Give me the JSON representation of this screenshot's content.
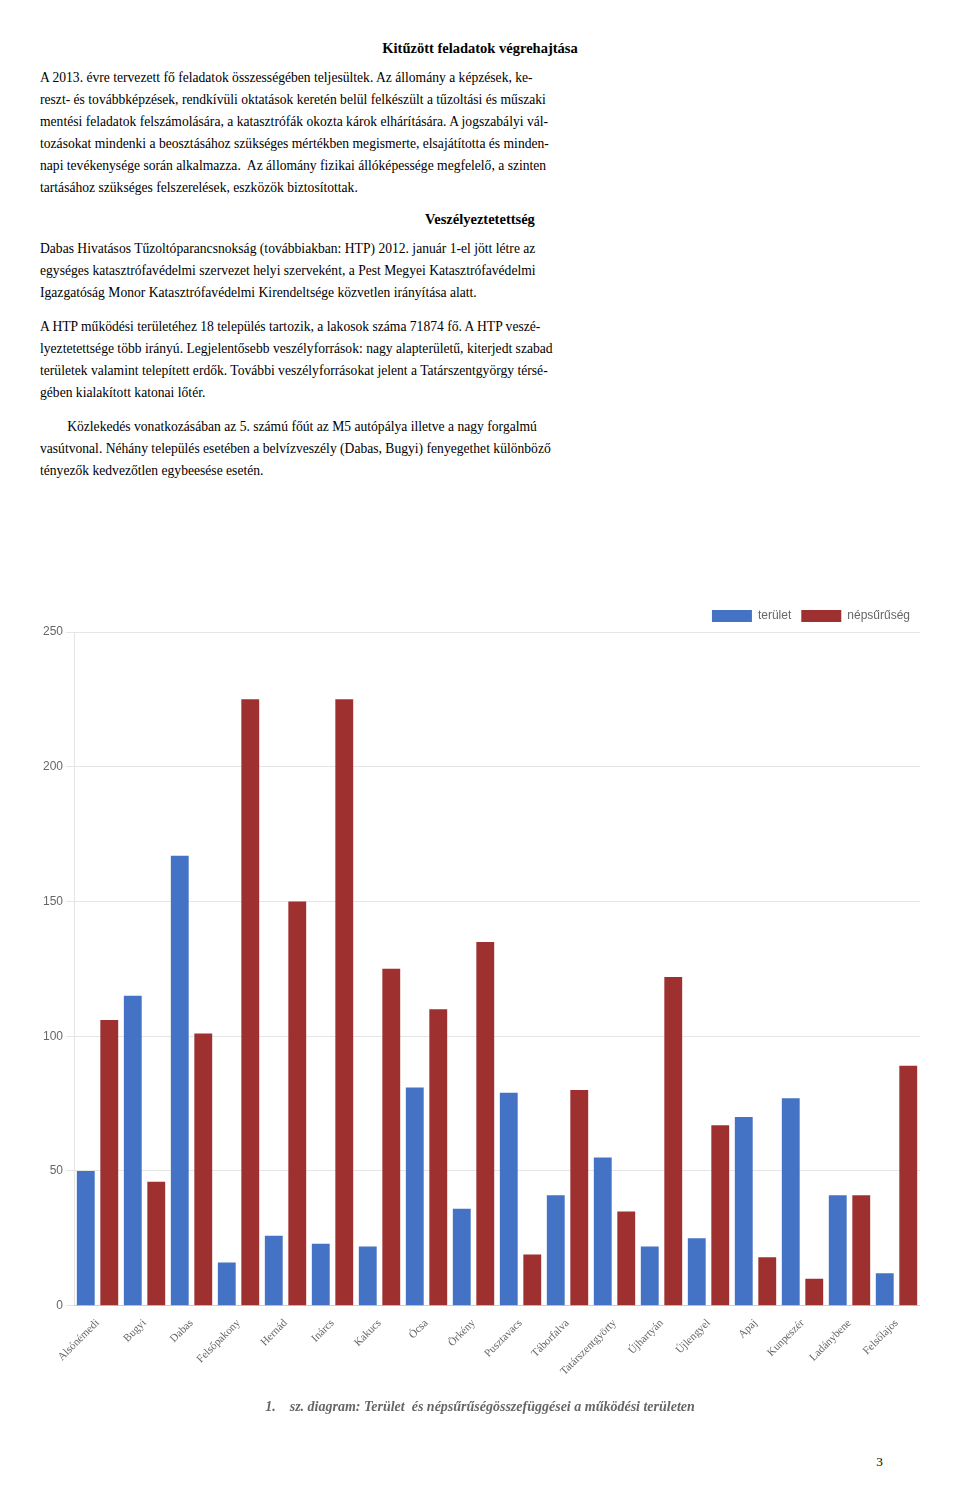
{
  "blocks": [
    {
      "heading": "Kitűzött feladatok végrehajtása"
    },
    {
      "lines": [
        "A 2013. évre tervezett fő feladatok összességében teljesültek. Az állomány a képzések, ke-",
        "reszt- és továbbképzések, rendkívüli oktatások keretén belül felkészült a tűzoltási és műszaki",
        "mentési feladatok felszámolására, a katasztrófák okozta károk elhárítására. A jogszabályi vál-",
        "tozásokat mindenki a beosztásához szükséges mértékben megismerte, elsajátította és minden-",
        "napi tevékenysége során alkalmazza.  Az állomány fizikai állóképessége megfelelő, a szinten",
        "tartásához szükséges felszerelések, eszközök biztosítottak."
      ]
    },
    {
      "heading": "Veszélyeztetettség"
    },
    {
      "lines": [
        "Dabas Hivatásos Tűzoltóparancsnokság (továbbiakban: HTP) 2012. január 1-el jött létre az",
        "egységes katasztrófavédelmi szervezet helyi szerveként, a Pest Megyei Katasztrófavédelmi",
        "Igazgatóság Monor Katasztrófavédelmi Kirendeltsége közvetlen irányítása alatt."
      ]
    },
    {
      "lines": [
        "A HTP működési területéhez 18 település tartozik, a lakosok száma 71874 fő. A HTP veszé-",
        "lyeztetettsége több irányú. Legjelentősebb veszélyforrások: nagy alapterületű, kiterjedt szabad",
        "területek valamint telepített erdők. További veszélyforrásokat jelent a Tatárszentgyörgy térsé-",
        "gében kialakított katonai lőtér."
      ]
    },
    {
      "lines": [
        "        Közlekedés vonatkozásában az 5. számú főút az M5 autópálya illetve a nagy forgalmú",
        "vasútvonal. Néhány település esetében a belvízveszély (Dabas, Bugyi) fenyegethet különböző",
        "tényezők kedvezőtlen egybeesése esetén."
      ]
    }
  ],
  "page_number": "3",
  "chart_data": {
    "type": "bar",
    "title": "1.    sz. diagram: Terület  és népsűrűségösszefüggései a működési területen",
    "categories": [
      "Alsónémedi",
      "Bugyi",
      "Dabas",
      "Felsőpakony",
      "Hernád",
      "Inárcs",
      "Kakucs",
      "Ócsa",
      "Örkény",
      "Pusztavacs",
      "Táborfalva",
      "Tatárszentgyörty",
      "Újhartyán",
      "Újlengyel",
      "Apaj",
      "Kunpeszér",
      "Ladánybene",
      "Felsőlajos"
    ],
    "series": [
      {
        "name": "terület",
        "color": "#4472C4",
        "values": [
          50,
          115,
          167,
          16,
          26,
          23,
          22,
          81,
          36,
          79,
          41,
          55,
          22,
          25,
          70,
          77,
          41,
          12
        ]
      },
      {
        "name": "népsűrűség",
        "color": "#9E3030",
        "values": [
          106,
          46,
          101,
          225,
          150,
          225,
          125,
          110,
          135,
          19,
          80,
          35,
          122,
          67,
          18,
          10,
          41,
          89
        ]
      }
    ],
    "ylim": [
      0,
      250
    ],
    "yticks": [
      0,
      50,
      100,
      150,
      200,
      250
    ],
    "grid": true,
    "legend": "upper right"
  }
}
